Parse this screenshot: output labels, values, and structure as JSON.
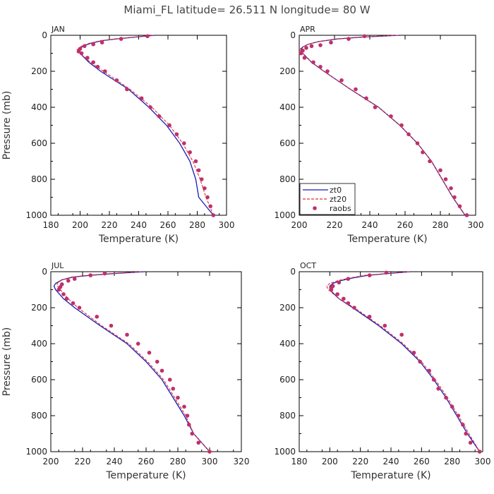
{
  "figure": {
    "title": "Miami_FL   latitude= 26.511 N longitude= 80 W"
  },
  "colors": {
    "zt0": "#1a1ab8",
    "zt20": "#e03030",
    "raobs": "#c0306a"
  },
  "legend": {
    "items": [
      "zt0",
      "zt20",
      "raobs"
    ],
    "panel": "APR",
    "position": "bottom-left"
  },
  "chart_data": [
    {
      "type": "line",
      "title": "JAN",
      "xlabel": "Temperature (K)",
      "ylabel": "Pressure (mb)",
      "xlim": [
        180,
        300
      ],
      "ylim": [
        1000,
        0
      ],
      "xticks": [
        180,
        200,
        220,
        240,
        260,
        280,
        300
      ],
      "yticks": [
        0,
        200,
        400,
        600,
        800,
        1000
      ],
      "series": [
        {
          "name": "zt0",
          "points": [
            [
              251,
              0
            ],
            [
              238,
              10
            ],
            [
              225,
              20
            ],
            [
              215,
              30
            ],
            [
              207,
              45
            ],
            [
              202,
              60
            ],
            [
              199,
              80
            ],
            [
              200,
              100
            ],
            [
              206,
              150
            ],
            [
              214,
              200
            ],
            [
              233,
              300
            ],
            [
              247,
              400
            ],
            [
              259,
              500
            ],
            [
              268,
              600
            ],
            [
              275,
              700
            ],
            [
              279,
              800
            ],
            [
              281,
              900
            ],
            [
              291,
              1000
            ]
          ]
        },
        {
          "name": "zt20",
          "points": [
            [
              250,
              0
            ],
            [
              237,
              10
            ],
            [
              224,
              20
            ],
            [
              214,
              30
            ],
            [
              206,
              45
            ],
            [
              201,
              60
            ],
            [
              198,
              80
            ],
            [
              200,
              100
            ],
            [
              207,
              150
            ],
            [
              216,
              200
            ],
            [
              234,
              300
            ],
            [
              249,
              400
            ],
            [
              261,
              500
            ],
            [
              270,
              600
            ],
            [
              277,
              700
            ],
            [
              282,
              800
            ],
            [
              286,
              900
            ],
            [
              291,
              1000
            ]
          ]
        },
        {
          "name": "raobs",
          "points": [
            [
              246,
              5
            ],
            [
              228,
              20
            ],
            [
              215,
              40
            ],
            [
              209,
              50
            ],
            [
              203,
              60
            ],
            [
              200,
              75
            ],
            [
              199,
              90
            ],
            [
              201,
              100
            ],
            [
              205,
              125
            ],
            [
              209,
              150
            ],
            [
              212,
              175
            ],
            [
              217,
              200
            ],
            [
              225,
              250
            ],
            [
              232,
              300
            ],
            [
              242,
              350
            ],
            [
              248,
              400
            ],
            [
              254,
              450
            ],
            [
              261,
              500
            ],
            [
              266,
              550
            ],
            [
              271,
              600
            ],
            [
              275,
              650
            ],
            [
              279,
              700
            ],
            [
              281,
              750
            ],
            [
              283,
              800
            ],
            [
              285,
              850
            ],
            [
              287,
              900
            ],
            [
              289,
              950
            ],
            [
              291,
              1000
            ]
          ]
        }
      ]
    },
    {
      "type": "line",
      "title": "APR",
      "xlabel": "Temperature (K)",
      "ylabel": "",
      "xlim": [
        200,
        300
      ],
      "ylim": [
        1000,
        0
      ],
      "xticks": [
        200,
        220,
        240,
        260,
        280,
        300
      ],
      "yticks": [
        0,
        200,
        400,
        600,
        800,
        1000
      ],
      "series": [
        {
          "name": "zt0",
          "points": [
            [
              257,
              0
            ],
            [
              236,
              10
            ],
            [
              222,
              20
            ],
            [
              211,
              35
            ],
            [
              205,
              50
            ],
            [
              202,
              65
            ],
            [
              201,
              80
            ],
            [
              202,
              100
            ],
            [
              207,
              150
            ],
            [
              214,
              200
            ],
            [
              229,
              300
            ],
            [
              245,
              400
            ],
            [
              257,
              500
            ],
            [
              267,
              600
            ],
            [
              275,
              700
            ],
            [
              281,
              800
            ],
            [
              287,
              900
            ],
            [
              294,
              1000
            ]
          ]
        },
        {
          "name": "zt20",
          "points": [
            [
              256,
              0
            ],
            [
              235,
              10
            ],
            [
              221,
              20
            ],
            [
              211,
              35
            ],
            [
              205,
              50
            ],
            [
              202,
              65
            ],
            [
              200,
              80
            ],
            [
              202,
              100
            ],
            [
              207,
              150
            ],
            [
              214,
              200
            ],
            [
              229,
              300
            ],
            [
              245,
              400
            ],
            [
              257,
              500
            ],
            [
              267,
              600
            ],
            [
              275,
              700
            ],
            [
              281,
              800
            ],
            [
              287,
              900
            ],
            [
              294,
              1000
            ]
          ]
        },
        {
          "name": "raobs",
          "points": [
            [
              237,
              5
            ],
            [
              228,
              20
            ],
            [
              218,
              40
            ],
            [
              212,
              55
            ],
            [
              207,
              60
            ],
            [
              204,
              70
            ],
            [
              202,
              85
            ],
            [
              201,
              100
            ],
            [
              203,
              125
            ],
            [
              208,
              150
            ],
            [
              212,
              175
            ],
            [
              216,
              200
            ],
            [
              224,
              250
            ],
            [
              232,
              300
            ],
            [
              238,
              350
            ],
            [
              243,
              400
            ],
            [
              252,
              450
            ],
            [
              258,
              500
            ],
            [
              262,
              550
            ],
            [
              267,
              600
            ],
            [
              270,
              650
            ],
            [
              274,
              700
            ],
            [
              280,
              750
            ],
            [
              283,
              800
            ],
            [
              286,
              850
            ],
            [
              288,
              900
            ],
            [
              291,
              950
            ],
            [
              295,
              1000
            ]
          ]
        }
      ]
    },
    {
      "type": "line",
      "title": "JUL",
      "xlabel": "Temperature (K)",
      "ylabel": "Pressure (mb)",
      "xlim": [
        200,
        320
      ],
      "ylim": [
        1000,
        0
      ],
      "xticks": [
        200,
        220,
        240,
        260,
        280,
        300,
        320
      ],
      "yticks": [
        0,
        200,
        400,
        600,
        800,
        1000
      ],
      "series": [
        {
          "name": "zt0",
          "points": [
            [
              259,
              0
            ],
            [
              240,
              10
            ],
            [
              225,
              20
            ],
            [
              214,
              30
            ],
            [
              207,
              45
            ],
            [
              203,
              65
            ],
            [
              202,
              80
            ],
            [
              203,
              100
            ],
            [
              208,
              150
            ],
            [
              215,
              200
            ],
            [
              231,
              300
            ],
            [
              248,
              400
            ],
            [
              260,
              500
            ],
            [
              270,
              600
            ],
            [
              277,
              700
            ],
            [
              284,
              800
            ],
            [
              290,
              900
            ],
            [
              300,
              1000
            ]
          ]
        },
        {
          "name": "zt20",
          "points": [
            [
              257,
              0
            ],
            [
              238,
              10
            ],
            [
              223,
              20
            ],
            [
              213,
              30
            ],
            [
              207,
              45
            ],
            [
              204,
              65
            ],
            [
              204,
              80
            ],
            [
              206,
              100
            ],
            [
              211,
              150
            ],
            [
              217,
              200
            ],
            [
              232,
              300
            ],
            [
              249,
              400
            ],
            [
              261,
              500
            ],
            [
              271,
              600
            ],
            [
              278,
              700
            ],
            [
              285,
              800
            ],
            [
              290,
              900
            ],
            [
              300,
              1000
            ]
          ]
        },
        {
          "name": "raobs",
          "points": [
            [
              234,
              10
            ],
            [
              225,
              20
            ],
            [
              215,
              40
            ],
            [
              211,
              50
            ],
            [
              207,
              70
            ],
            [
              206,
              85
            ],
            [
              205,
              100
            ],
            [
              208,
              125
            ],
            [
              210,
              150
            ],
            [
              214,
              175
            ],
            [
              218,
              200
            ],
            [
              229,
              250
            ],
            [
              238,
              300
            ],
            [
              248,
              350
            ],
            [
              255,
              400
            ],
            [
              262,
              450
            ],
            [
              267,
              500
            ],
            [
              270,
              550
            ],
            [
              275,
              600
            ],
            [
              277,
              650
            ],
            [
              280,
              700
            ],
            [
              284,
              750
            ],
            [
              286,
              800
            ],
            [
              287,
              850
            ],
            [
              289,
              900
            ],
            [
              293,
              950
            ],
            [
              300,
              1000
            ]
          ]
        }
      ]
    },
    {
      "type": "line",
      "title": "OCT",
      "xlabel": "Temperature (K)",
      "ylabel": "",
      "xlim": [
        180,
        300
      ],
      "ylim": [
        1000,
        0
      ],
      "xticks": [
        180,
        200,
        220,
        240,
        260,
        280,
        300
      ],
      "yticks": [
        0,
        200,
        400,
        600,
        800,
        1000
      ],
      "series": [
        {
          "name": "zt0",
          "points": [
            [
              253,
              0
            ],
            [
              238,
              10
            ],
            [
              225,
              20
            ],
            [
              215,
              35
            ],
            [
              207,
              50
            ],
            [
              202,
              65
            ],
            [
              200,
              80
            ],
            [
              200,
              100
            ],
            [
              206,
              150
            ],
            [
              215,
              200
            ],
            [
              232,
              300
            ],
            [
              247,
              400
            ],
            [
              259,
              500
            ],
            [
              268,
              600
            ],
            [
              276,
              700
            ],
            [
              283,
              800
            ],
            [
              290,
              900
            ],
            [
              298,
              1000
            ]
          ]
        },
        {
          "name": "zt20",
          "points": [
            [
              252,
              0
            ],
            [
              237,
              10
            ],
            [
              223,
              20
            ],
            [
              213,
              35
            ],
            [
              205,
              50
            ],
            [
              200,
              65
            ],
            [
              198,
              80
            ],
            [
              199,
              100
            ],
            [
              206,
              150
            ],
            [
              216,
              200
            ],
            [
              233,
              300
            ],
            [
              248,
              400
            ],
            [
              260,
              500
            ],
            [
              269,
              600
            ],
            [
              277,
              700
            ],
            [
              284,
              800
            ],
            [
              291,
              900
            ],
            [
              298,
              1000
            ]
          ]
        },
        {
          "name": "raobs",
          "points": [
            [
              237,
              5
            ],
            [
              226,
              20
            ],
            [
              212,
              40
            ],
            [
              206,
              60
            ],
            [
              202,
              80
            ],
            [
              201,
              90
            ],
            [
              201,
              100
            ],
            [
              205,
              125
            ],
            [
              209,
              150
            ],
            [
              212,
              175
            ],
            [
              216,
              200
            ],
            [
              226,
              250
            ],
            [
              236,
              300
            ],
            [
              247,
              350
            ],
            [
              255,
              450
            ],
            [
              259,
              500
            ],
            [
              265,
              550
            ],
            [
              268,
              600
            ],
            [
              271,
              650
            ],
            [
              276,
              700
            ],
            [
              280,
              750
            ],
            [
              284,
              800
            ],
            [
              287,
              850
            ],
            [
              289,
              900
            ],
            [
              292,
              950
            ],
            [
              298,
              1000
            ]
          ]
        }
      ]
    }
  ]
}
